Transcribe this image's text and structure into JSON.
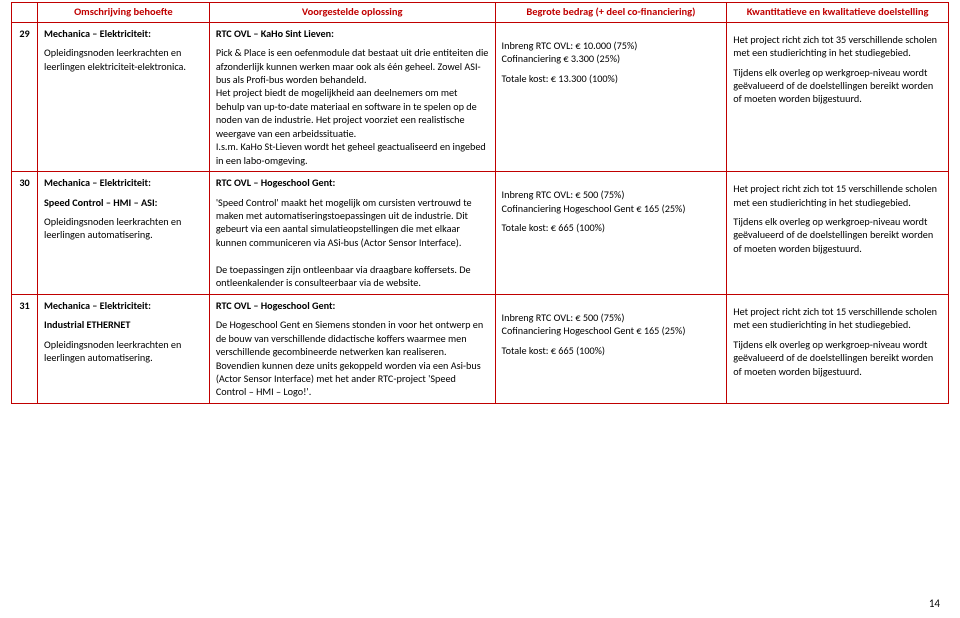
{
  "headers": {
    "col1": "",
    "col2": "Omschrijving behoefte",
    "col3": "Voorgestelde oplossing",
    "col4": "Begrote bedrag (+ deel co-financiering)",
    "col5": "Kwantitatieve en kwalitatieve doelstelling"
  },
  "rows": [
    {
      "num": "29",
      "need_title": "Mechanica – Elektriciteit:",
      "need_body": "Opleidingsnoden leerkrachten en leerlingen elektriciteit-elektronica.",
      "sol_title": "RTC OVL – KaHo Sint Lieven:",
      "sol_body": "Pick & Place is een oefenmodule dat bestaat uit drie entiteiten die afzonderlijk kunnen werken maar ook als één geheel. Zowel ASI-bus als Profi-bus worden behandeld.\nHet project biedt de mogelijkheid aan deelnemers om met behulp van up-to-date materiaal en software in te spelen op de noden van de industrie. Het project voorziet een realistische weergave van een arbeidssituatie.\nI.s.m. KaHo St-Lieven wordt het geheel geactualiseerd en ingebed in een labo-omgeving.",
      "budget_l1": "Inbreng RTC OVL: € 10.000 (75%)",
      "budget_l2": "Cofinanciering € 3.300 (25%)",
      "budget_l3": "Totale kost: € 13.300 (100%)",
      "goal_p1": "Het project richt zich tot 35 verschillende scholen met een studierichting in het studiegebied.",
      "goal_p2": "Tijdens elk overleg op werkgroep-niveau wordt geëvalueerd of de doelstellingen bereikt worden of moeten worden bijgestuurd."
    },
    {
      "num": "30",
      "need_title": "Mechanica – Elektriciteit:",
      "need_sub": "Speed Control – HMI – ASI:",
      "need_body": "Opleidingsnoden leerkrachten en leerlingen automatisering.",
      "sol_title": "RTC OVL – Hogeschool Gent:",
      "sol_body": "'Speed Control' maakt het mogelijk om cursisten vertrouwd te maken met automatiseringstoepassingen uit de industrie. Dit gebeurt via een aantal simulatieopstellingen die met elkaar kunnen communiceren via ASi-bus (Actor Sensor Interface).\n\nDe toepassingen zijn ontleenbaar via draagbare koffersets. De ontleenkalender is consulteerbaar via de website.",
      "budget_l1": "Inbreng RTC OVL: € 500 (75%)",
      "budget_l2": "Cofinanciering Hogeschool Gent € 165 (25%)",
      "budget_l3": "Totale kost: € 665 (100%)",
      "goal_p1": "Het project richt zich tot 15 verschillende scholen met een studierichting in het studiegebied.",
      "goal_p2": "Tijdens elk overleg op werkgroep-niveau wordt geëvalueerd of de doelstellingen bereikt worden of moeten worden bijgestuurd."
    },
    {
      "num": "31",
      "need_title": "Mechanica – Elektriciteit:",
      "need_sub": "Industrial ETHERNET",
      "need_body": "Opleidingsnoden leerkrachten en leerlingen automatisering.",
      "sol_title": "RTC OVL – Hogeschool Gent:",
      "sol_body": "De Hogeschool Gent en Siemens stonden in voor het ontwerp en de bouw van verschillende didactische koffers waarmee men verschillende gecombineerde netwerken kan realiseren. Bovendien kunnen deze units gekoppeld worden via een Asi-bus (Actor Sensor Interface) met het ander RTC-project 'Speed Control – HMI – Logo!'.",
      "budget_l1": "Inbreng RTC OVL: € 500 (75%)",
      "budget_l2": "Cofinanciering Hogeschool Gent  € 165 (25%)",
      "budget_l3": "Totale kost: € 665 (100%)",
      "goal_p1": "Het project richt zich tot 15 verschillende scholen met een studierichting in het studiegebied.",
      "goal_p2": "Tijdens elk overleg op werkgroep-niveau wordt geëvalueerd of de doelstellingen bereikt worden of moeten worden bijgestuurd."
    }
  ],
  "page_number": "14"
}
